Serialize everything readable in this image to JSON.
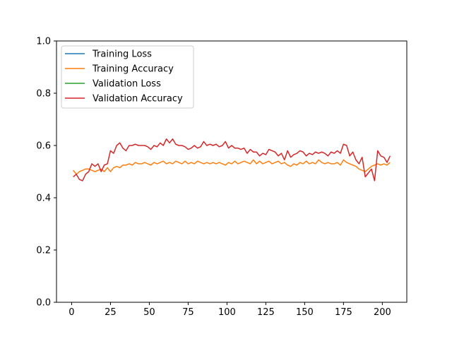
{
  "chart_data": {
    "type": "line",
    "title": "",
    "xlabel": "",
    "ylabel": "",
    "xlim": [
      -9.75,
      215.75
    ],
    "ylim": [
      0.0,
      1.0
    ],
    "xticks": [
      0,
      25,
      50,
      75,
      100,
      125,
      150,
      175,
      200
    ],
    "yticks": [
      0.0,
      0.2,
      0.4,
      0.6,
      0.8,
      1.0
    ],
    "xtick_labels": [
      "0",
      "25",
      "50",
      "75",
      "100",
      "125",
      "150",
      "175",
      "200"
    ],
    "ytick_labels": [
      "0.0",
      "0.2",
      "0.4",
      "0.6",
      "0.8",
      "1.0"
    ],
    "grid": false,
    "legend_position": "upper-left",
    "series": [
      {
        "name": "Training Loss",
        "color": "#1f77b4",
        "x": [],
        "y": []
      },
      {
        "name": "Training Accuracy",
        "color": "#ff7f0e",
        "x": [
          1,
          3,
          5,
          7,
          9,
          11,
          13,
          15,
          17,
          19,
          21,
          23,
          25,
          27,
          29,
          31,
          33,
          35,
          37,
          39,
          41,
          43,
          45,
          47,
          49,
          51,
          53,
          55,
          57,
          59,
          61,
          63,
          65,
          67,
          69,
          71,
          73,
          75,
          77,
          79,
          81,
          83,
          85,
          87,
          89,
          91,
          93,
          95,
          97,
          99,
          101,
          103,
          105,
          107,
          109,
          111,
          113,
          115,
          117,
          119,
          121,
          123,
          125,
          127,
          129,
          131,
          133,
          135,
          137,
          139,
          141,
          143,
          145,
          147,
          149,
          151,
          153,
          155,
          157,
          159,
          161,
          163,
          165,
          167,
          169,
          171,
          173,
          175,
          177,
          179,
          181,
          183,
          185,
          187,
          189,
          191,
          193,
          195,
          197,
          199,
          201,
          203,
          205
        ],
        "y": [
          0.505,
          0.49,
          0.5,
          0.505,
          0.51,
          0.51,
          0.505,
          0.5,
          0.505,
          0.51,
          0.5,
          0.515,
          0.5,
          0.515,
          0.52,
          0.515,
          0.525,
          0.525,
          0.53,
          0.525,
          0.535,
          0.53,
          0.53,
          0.535,
          0.53,
          0.525,
          0.535,
          0.53,
          0.535,
          0.54,
          0.53,
          0.535,
          0.53,
          0.54,
          0.535,
          0.53,
          0.54,
          0.53,
          0.535,
          0.53,
          0.54,
          0.535,
          0.53,
          0.535,
          0.53,
          0.535,
          0.53,
          0.535,
          0.53,
          0.525,
          0.535,
          0.53,
          0.54,
          0.53,
          0.535,
          0.54,
          0.535,
          0.53,
          0.545,
          0.53,
          0.54,
          0.53,
          0.535,
          0.54,
          0.53,
          0.535,
          0.54,
          0.53,
          0.535,
          0.525,
          0.52,
          0.53,
          0.525,
          0.535,
          0.53,
          0.54,
          0.53,
          0.535,
          0.53,
          0.545,
          0.535,
          0.53,
          0.535,
          0.53,
          0.53,
          0.535,
          0.525,
          0.545,
          0.535,
          0.53,
          0.525,
          0.52,
          0.51,
          0.505,
          0.5,
          0.51,
          0.52,
          0.525,
          0.53,
          0.525,
          0.53,
          0.525,
          0.535
        ]
      },
      {
        "name": "Validation Loss",
        "color": "#2ca02c",
        "x": [],
        "y": []
      },
      {
        "name": "Validation Accuracy",
        "color": "#d62728",
        "x": [
          1,
          3,
          5,
          7,
          9,
          11,
          13,
          15,
          17,
          19,
          21,
          23,
          25,
          27,
          29,
          31,
          33,
          35,
          37,
          39,
          41,
          43,
          45,
          47,
          49,
          51,
          53,
          55,
          57,
          59,
          61,
          63,
          65,
          67,
          69,
          71,
          73,
          75,
          77,
          79,
          81,
          83,
          85,
          87,
          89,
          91,
          93,
          95,
          97,
          99,
          101,
          103,
          105,
          107,
          109,
          111,
          113,
          115,
          117,
          119,
          121,
          123,
          125,
          127,
          129,
          131,
          133,
          135,
          137,
          139,
          141,
          143,
          145,
          147,
          149,
          151,
          153,
          155,
          157,
          159,
          161,
          163,
          165,
          167,
          169,
          171,
          173,
          175,
          177,
          179,
          181,
          183,
          185,
          187,
          189,
          191,
          193,
          195,
          197,
          199,
          201,
          203,
          205
        ],
        "y": [
          0.48,
          0.49,
          0.47,
          0.465,
          0.49,
          0.5,
          0.53,
          0.52,
          0.53,
          0.5,
          0.525,
          0.53,
          0.58,
          0.57,
          0.6,
          0.61,
          0.59,
          0.58,
          0.6,
          0.6,
          0.605,
          0.6,
          0.6,
          0.6,
          0.595,
          0.585,
          0.6,
          0.595,
          0.61,
          0.6,
          0.625,
          0.61,
          0.625,
          0.605,
          0.6,
          0.6,
          0.595,
          0.585,
          0.59,
          0.6,
          0.59,
          0.595,
          0.615,
          0.6,
          0.605,
          0.6,
          0.605,
          0.595,
          0.6,
          0.615,
          0.59,
          0.6,
          0.59,
          0.59,
          0.585,
          0.59,
          0.57,
          0.585,
          0.575,
          0.575,
          0.56,
          0.57,
          0.565,
          0.585,
          0.58,
          0.575,
          0.56,
          0.57,
          0.545,
          0.58,
          0.555,
          0.565,
          0.57,
          0.58,
          0.575,
          0.56,
          0.57,
          0.565,
          0.575,
          0.57,
          0.575,
          0.57,
          0.56,
          0.575,
          0.57,
          0.58,
          0.57,
          0.605,
          0.6,
          0.56,
          0.575,
          0.545,
          0.53,
          0.555,
          0.48,
          0.495,
          0.51,
          0.465,
          0.58,
          0.56,
          0.555,
          0.535,
          0.56
        ]
      }
    ]
  }
}
